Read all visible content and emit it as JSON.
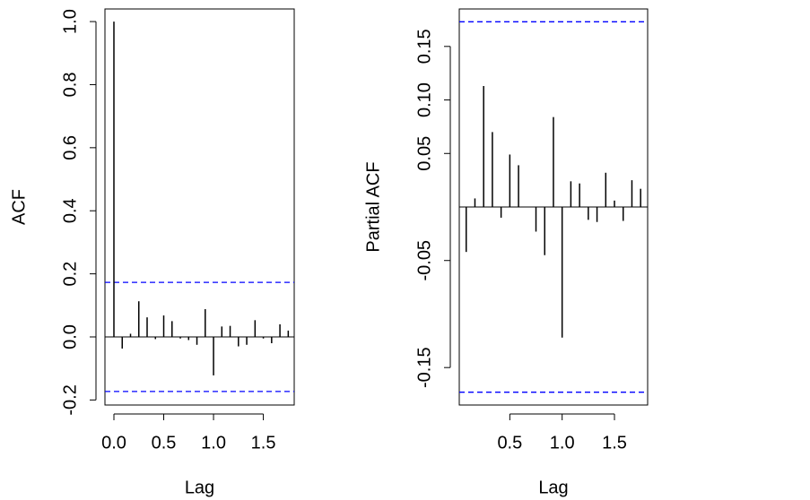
{
  "chart_data": [
    {
      "type": "acf",
      "xlabel": "Lag",
      "ylabel": "ACF",
      "x": [
        0,
        0.0833,
        0.1667,
        0.25,
        0.3333,
        0.4167,
        0.5,
        0.5833,
        0.6667,
        0.75,
        0.8333,
        0.9167,
        1,
        1.0833,
        1.1667,
        1.25,
        1.3333,
        1.4167,
        1.5,
        1.5833,
        1.6667,
        1.75
      ],
      "values": [
        1.0,
        -0.037,
        0.01,
        0.113,
        0.062,
        -0.007,
        0.068,
        0.05,
        -0.005,
        -0.01,
        -0.025,
        0.088,
        -0.122,
        0.033,
        0.035,
        -0.03,
        -0.025,
        0.053,
        -0.005,
        -0.02,
        0.04,
        0.02
      ],
      "color": "#000000",
      "hlines": [
        0.173,
        -0.173
      ],
      "hline_color": "#0000ff",
      "xlim": [
        -0.09,
        1.81
      ],
      "ylim": [
        -0.216,
        1.04
      ],
      "xticks": [
        {
          "value": 0,
          "label": "0.0"
        },
        0.5,
        {
          "value": 1,
          "label": "1.0"
        },
        1.5
      ],
      "yticks": [
        -0.2,
        {
          "value": 0,
          "label": "0.0"
        },
        0.2,
        0.4,
        0.6,
        0.8,
        {
          "value": 1,
          "label": "1.0"
        }
      ]
    },
    {
      "type": "acf",
      "xlabel": "Lag",
      "ylabel": "Partial ACF",
      "x": [
        0.0833,
        0.1667,
        0.25,
        0.3333,
        0.4167,
        0.5,
        0.5833,
        0.6667,
        0.75,
        0.8333,
        0.9167,
        1,
        1.0833,
        1.1667,
        1.25,
        1.3333,
        1.4167,
        1.5,
        1.5833,
        1.6667,
        1.75
      ],
      "values": [
        -0.042,
        0.008,
        0.113,
        0.07,
        -0.01,
        0.049,
        0.039,
        0.0,
        -0.023,
        -0.045,
        0.084,
        -0.122,
        0.024,
        0.022,
        -0.012,
        -0.014,
        0.032,
        0.006,
        -0.013,
        0.025,
        0.017
      ],
      "color": "#000000",
      "hlines": [
        0.173,
        -0.173
      ],
      "hline_color": "#0000ff",
      "xlim": [
        0.017,
        1.817
      ],
      "ylim": [
        -0.185,
        0.185
      ],
      "xticks": [
        0.5,
        {
          "value": 1,
          "label": "1.0"
        },
        1.5
      ],
      "yticks": [
        -0.15,
        -0.05,
        0.05,
        {
          "value": 0.1,
          "label": "0.10"
        },
        0.15
      ]
    }
  ]
}
